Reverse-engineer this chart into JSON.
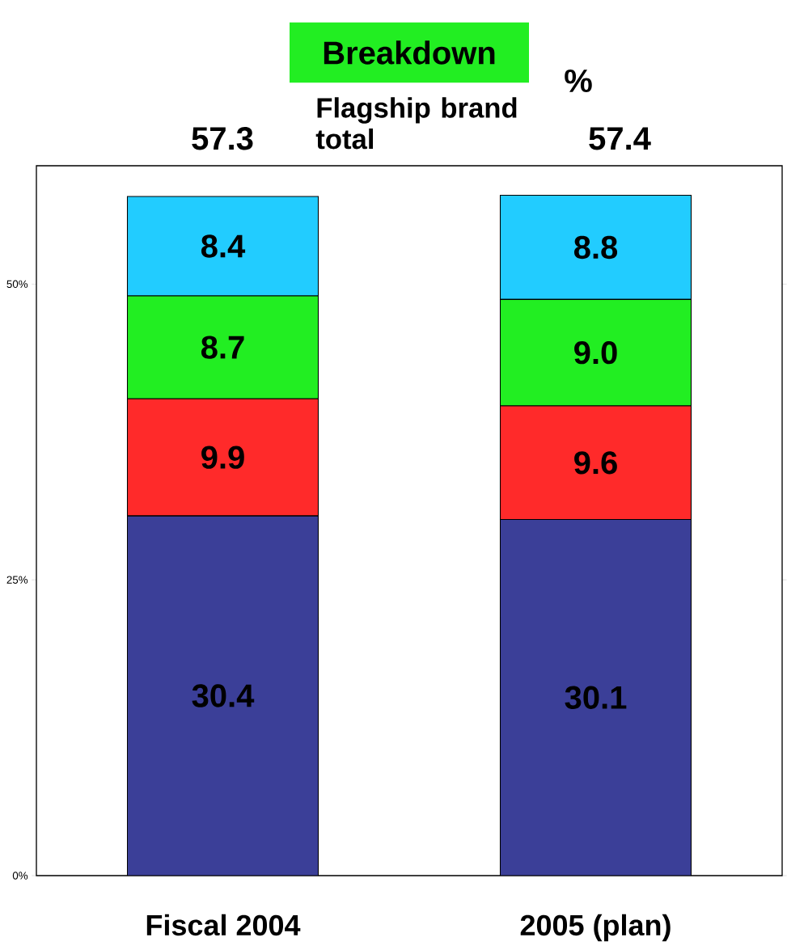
{
  "chart_data": {
    "type": "bar",
    "title": "Breakdown",
    "stacked": true,
    "categories": [
      "Fiscal 2004",
      "2005 (plan)"
    ],
    "series": [
      {
        "color": "#3b3f98",
        "values": [
          30.4,
          30.1
        ]
      },
      {
        "color": "#ff2a2a",
        "values": [
          9.9,
          9.6
        ]
      },
      {
        "color": "#22ee22",
        "values": [
          8.7,
          9.0
        ]
      },
      {
        "color": "#22ccff",
        "values": [
          8.4,
          8.8
        ]
      }
    ],
    "totals": [
      "57.3",
      "57.4"
    ],
    "value_labels": [
      [
        "30.4",
        "30.1"
      ],
      [
        "9.9",
        "9.6"
      ],
      [
        "8.7",
        "9.0"
      ],
      [
        "8.4",
        "8.8"
      ]
    ],
    "ylim": [
      0,
      60
    ],
    "yticks": [
      {
        "value": 0,
        "label": "0%"
      },
      {
        "value": 25,
        "label": "25%"
      },
      {
        "value": 50,
        "label": "50%"
      }
    ],
    "annotations": [
      "%",
      "Flagship brand total"
    ]
  }
}
